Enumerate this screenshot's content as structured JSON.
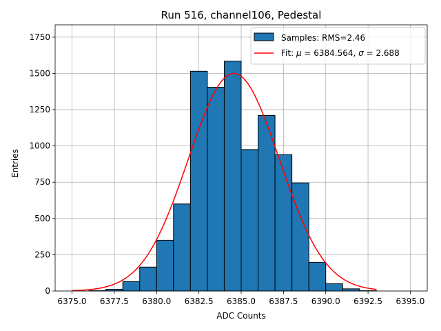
{
  "chart_data": {
    "type": "bar",
    "title": "Run 516, channel106, Pedestal",
    "xlabel": "ADC Counts",
    "ylabel": "Entries",
    "xlim": [
      6374,
      6396
    ],
    "ylim": [
      0,
      1835
    ],
    "grid": true,
    "legend_position": "top-right",
    "x_ticks": [
      {
        "value": 6375.0,
        "label": "6375.0"
      },
      {
        "value": 6377.5,
        "label": "6377.5"
      },
      {
        "value": 6380.0,
        "label": "6380.0"
      },
      {
        "value": 6382.5,
        "label": "6382.5"
      },
      {
        "value": 6385.0,
        "label": "6385.0"
      },
      {
        "value": 6387.5,
        "label": "6387.5"
      },
      {
        "value": 6390.0,
        "label": "6390.0"
      },
      {
        "value": 6392.5,
        "label": "6392.5"
      },
      {
        "value": 6395.0,
        "label": "6395.0"
      }
    ],
    "y_ticks": [
      {
        "value": 0,
        "label": "0"
      },
      {
        "value": 250,
        "label": "250"
      },
      {
        "value": 500,
        "label": "500"
      },
      {
        "value": 750,
        "label": "750"
      },
      {
        "value": 1000,
        "label": "1000"
      },
      {
        "value": 1250,
        "label": "1250"
      },
      {
        "value": 1500,
        "label": "1500"
      },
      {
        "value": 1750,
        "label": "1750"
      }
    ],
    "histogram": {
      "name": "Samples: RMS=2.46",
      "color": "#1f77b4",
      "edge_color": "#000000",
      "bins": [
        {
          "x0": 6376.0,
          "x1": 6377.0,
          "count": 2
        },
        {
          "x0": 6377.0,
          "x1": 6378.0,
          "count": 12
        },
        {
          "x0": 6378.0,
          "x1": 6379.0,
          "count": 65
        },
        {
          "x0": 6379.0,
          "x1": 6380.0,
          "count": 165
        },
        {
          "x0": 6380.0,
          "x1": 6381.0,
          "count": 350
        },
        {
          "x0": 6381.0,
          "x1": 6382.0,
          "count": 600
        },
        {
          "x0": 6382.0,
          "x1": 6383.0,
          "count": 1515
        },
        {
          "x0": 6383.0,
          "x1": 6384.0,
          "count": 1405
        },
        {
          "x0": 6384.0,
          "x1": 6385.0,
          "count": 1585
        },
        {
          "x0": 6385.0,
          "x1": 6386.0,
          "count": 975
        },
        {
          "x0": 6386.0,
          "x1": 6387.0,
          "count": 1210
        },
        {
          "x0": 6387.0,
          "x1": 6388.0,
          "count": 940
        },
        {
          "x0": 6388.0,
          "x1": 6389.0,
          "count": 745
        },
        {
          "x0": 6389.0,
          "x1": 6390.0,
          "count": 198
        },
        {
          "x0": 6390.0,
          "x1": 6391.0,
          "count": 50
        },
        {
          "x0": 6391.0,
          "x1": 6392.0,
          "count": 15
        },
        {
          "x0": 6392.0,
          "x1": 6393.0,
          "count": 2
        }
      ]
    },
    "fit": {
      "name": "Fit: μ = 6384.564, σ = 2.688",
      "label_prefix": "Fit: ",
      "mu_symbol": "μ",
      "mu_text": " = 6384.564, ",
      "sigma_symbol": "σ",
      "sigma_text": " = 2.688",
      "color": "#ff0000",
      "mu": 6384.564,
      "sigma": 2.688,
      "amplitude": 1500,
      "x_range": [
        6375.0,
        6393.0
      ]
    }
  }
}
